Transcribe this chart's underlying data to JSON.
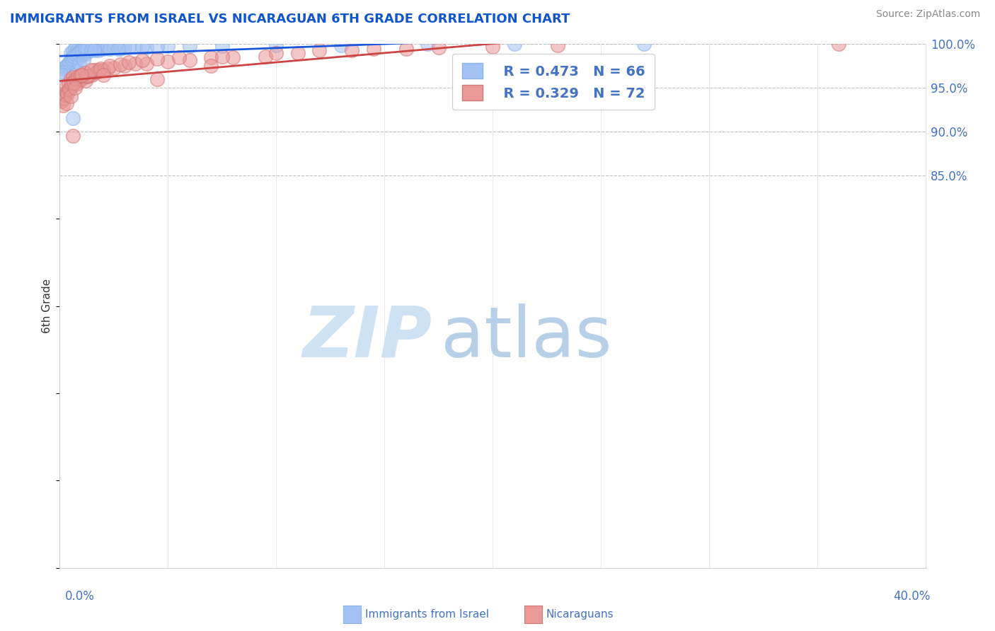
{
  "title": "IMMIGRANTS FROM ISRAEL VS NICARAGUAN 6TH GRADE CORRELATION CHART",
  "source": "Source: ZipAtlas.com",
  "ylabel": "6th Grade",
  "xmin": 0.0,
  "xmax": 40.0,
  "ymin": 40.0,
  "ymax": 100.0,
  "legend_r1": "R = 0.473",
  "legend_n1": "N = 66",
  "legend_r2": "R = 0.329",
  "legend_n2": "N = 72",
  "blue_color": "#a4c2f4",
  "pink_color": "#ea9999",
  "trendline_blue": "#1a56db",
  "trendline_pink": "#cc4444",
  "title_color": "#1155cc",
  "axis_label_color": "#4472c4",
  "watermark_zip_color": "#cfe2f3",
  "watermark_atlas_color": "#b8cfe8",
  "background_color": "#ffffff",
  "right_yticks": [
    85.0,
    90.0,
    95.0,
    100.0
  ],
  "blue_x": [
    0.3,
    0.4,
    0.5,
    0.5,
    0.6,
    0.6,
    0.7,
    0.7,
    0.8,
    0.8,
    0.9,
    0.9,
    1.0,
    1.0,
    1.1,
    1.1,
    1.2,
    1.2,
    1.3,
    1.3,
    1.4,
    1.5,
    1.6,
    1.7,
    1.8,
    1.9,
    2.0,
    2.2,
    2.5,
    2.8,
    3.0,
    3.5,
    4.0,
    5.0,
    0.2,
    0.25,
    0.35,
    0.45,
    0.55,
    0.65,
    0.75,
    0.85,
    0.95,
    1.05,
    1.15,
    1.25,
    1.45,
    0.15,
    0.1,
    1.6,
    2.3,
    3.2,
    4.5,
    6.0,
    7.5,
    10.0,
    13.0,
    17.0,
    21.0,
    27.0,
    2.7,
    3.8,
    0.6,
    0.8,
    0.9,
    1.1
  ],
  "blue_y": [
    97.5,
    97.8,
    98.2,
    99.0,
    98.5,
    99.2,
    98.0,
    99.5,
    98.8,
    99.3,
    98.5,
    99.1,
    98.7,
    99.4,
    99.0,
    99.6,
    98.9,
    99.5,
    99.2,
    99.7,
    99.4,
    99.5,
    99.4,
    99.6,
    99.3,
    99.5,
    99.5,
    99.6,
    99.7,
    99.5,
    99.6,
    99.7,
    99.6,
    99.8,
    97.2,
    97.4,
    97.6,
    97.9,
    98.3,
    98.6,
    98.8,
    99.0,
    99.2,
    99.3,
    99.5,
    99.4,
    99.4,
    96.8,
    96.5,
    99.3,
    99.5,
    99.6,
    99.7,
    99.8,
    99.8,
    99.9,
    99.9,
    100.0,
    100.0,
    100.0,
    99.5,
    99.7,
    91.5,
    97.0,
    97.8,
    98.2
  ],
  "pink_x": [
    0.1,
    0.15,
    0.2,
    0.25,
    0.3,
    0.3,
    0.4,
    0.4,
    0.5,
    0.5,
    0.6,
    0.6,
    0.7,
    0.8,
    0.9,
    1.0,
    1.1,
    1.2,
    1.3,
    1.4,
    1.5,
    1.6,
    1.7,
    1.8,
    2.0,
    2.2,
    2.5,
    3.0,
    3.5,
    4.0,
    5.0,
    6.0,
    7.0,
    8.0,
    9.5,
    11.0,
    13.5,
    16.0,
    20.0,
    0.35,
    0.45,
    0.55,
    0.65,
    0.75,
    0.85,
    0.95,
    1.05,
    1.15,
    1.25,
    1.45,
    1.9,
    2.3,
    2.8,
    3.2,
    3.8,
    4.5,
    5.5,
    7.5,
    10.0,
    12.0,
    14.5,
    17.5,
    0.6,
    2.0,
    4.5,
    7.0,
    23.0,
    36.0,
    0.3,
    0.5,
    0.7,
    1.0
  ],
  "pink_y": [
    93.5,
    93.0,
    93.8,
    94.2,
    94.5,
    95.2,
    94.8,
    95.5,
    95.0,
    96.0,
    95.3,
    96.2,
    95.8,
    95.5,
    95.9,
    96.0,
    96.2,
    95.8,
    96.3,
    96.5,
    96.5,
    97.0,
    96.8,
    97.0,
    97.0,
    97.2,
    97.3,
    97.5,
    97.8,
    97.8,
    98.0,
    98.2,
    98.5,
    98.5,
    98.6,
    99.0,
    99.3,
    99.5,
    99.7,
    94.3,
    94.9,
    95.5,
    95.6,
    96.1,
    96.3,
    96.4,
    96.5,
    96.7,
    96.4,
    97.0,
    97.2,
    97.5,
    97.7,
    97.9,
    98.2,
    98.3,
    98.5,
    98.6,
    99.0,
    99.3,
    99.5,
    99.6,
    89.5,
    96.5,
    96.0,
    97.5,
    99.9,
    100.0,
    93.2,
    94.0,
    95.0,
    96.5
  ]
}
